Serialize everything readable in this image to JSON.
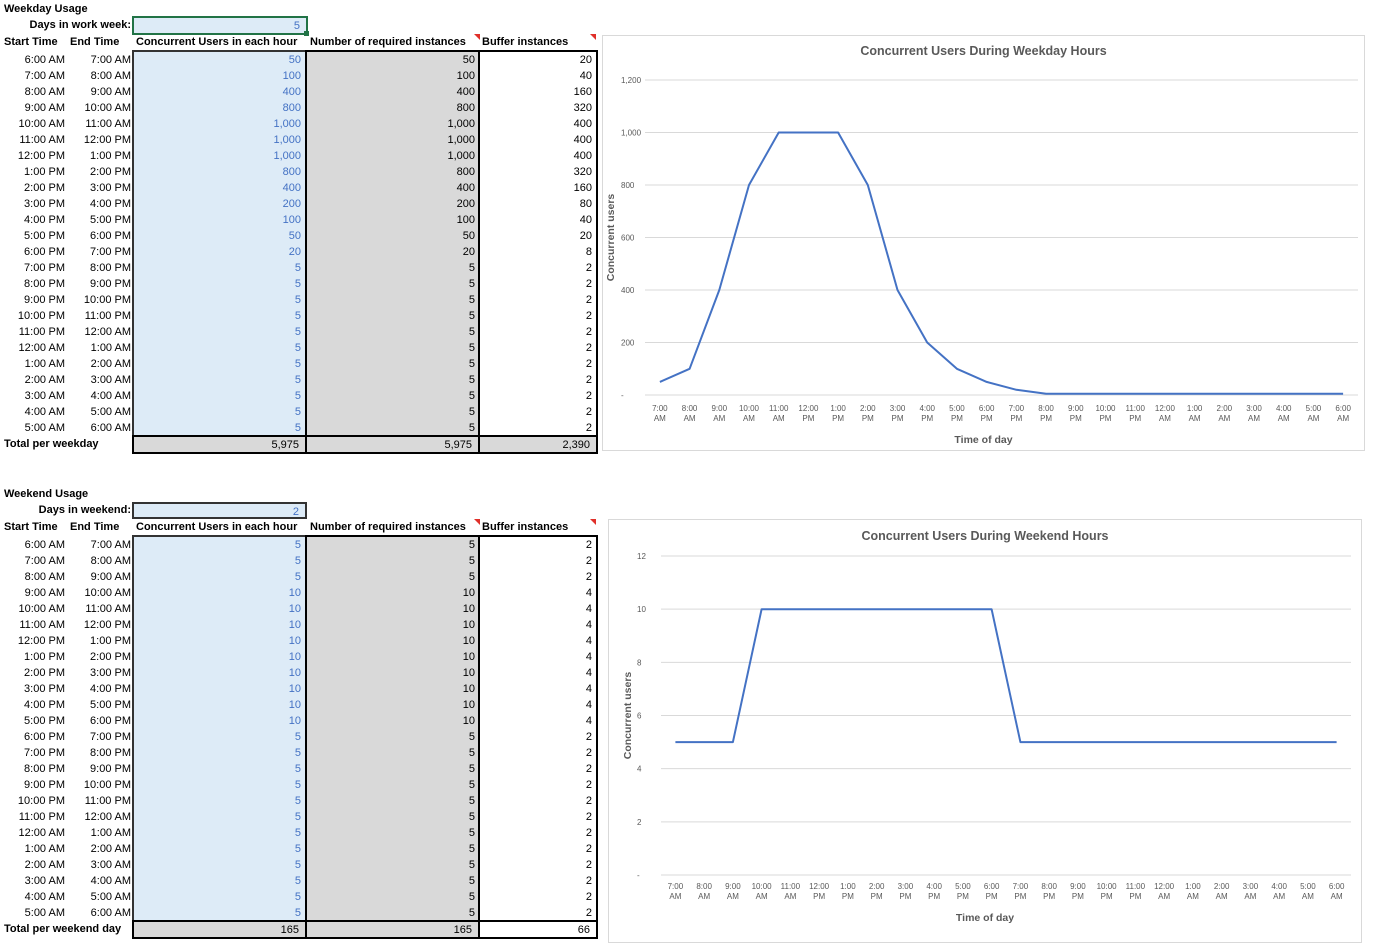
{
  "weekday": {
    "title": "Weekday Usage",
    "days_label": "Days in work week:",
    "days_value": "5",
    "headers": {
      "start": "Start Time",
      "end": "End Time",
      "users": "Concurrent Users in each hour",
      "required": "Number of required instances",
      "buffer": "Buffer instances"
    },
    "rows": [
      [
        "6:00 AM",
        "7:00 AM",
        "50",
        "50",
        "20"
      ],
      [
        "7:00 AM",
        "8:00 AM",
        "100",
        "100",
        "40"
      ],
      [
        "8:00 AM",
        "9:00 AM",
        "400",
        "400",
        "160"
      ],
      [
        "9:00 AM",
        "10:00 AM",
        "800",
        "800",
        "320"
      ],
      [
        "10:00 AM",
        "11:00 AM",
        "1,000",
        "1,000",
        "400"
      ],
      [
        "11:00 AM",
        "12:00 PM",
        "1,000",
        "1,000",
        "400"
      ],
      [
        "12:00 PM",
        "1:00 PM",
        "1,000",
        "1,000",
        "400"
      ],
      [
        "1:00 PM",
        "2:00 PM",
        "800",
        "800",
        "320"
      ],
      [
        "2:00 PM",
        "3:00 PM",
        "400",
        "400",
        "160"
      ],
      [
        "3:00 PM",
        "4:00 PM",
        "200",
        "200",
        "80"
      ],
      [
        "4:00 PM",
        "5:00 PM",
        "100",
        "100",
        "40"
      ],
      [
        "5:00 PM",
        "6:00 PM",
        "50",
        "50",
        "20"
      ],
      [
        "6:00 PM",
        "7:00 PM",
        "20",
        "20",
        "8"
      ],
      [
        "7:00 PM",
        "8:00 PM",
        "5",
        "5",
        "2"
      ],
      [
        "8:00 PM",
        "9:00 PM",
        "5",
        "5",
        "2"
      ],
      [
        "9:00 PM",
        "10:00 PM",
        "5",
        "5",
        "2"
      ],
      [
        "10:00 PM",
        "11:00 PM",
        "5",
        "5",
        "2"
      ],
      [
        "11:00 PM",
        "12:00 AM",
        "5",
        "5",
        "2"
      ],
      [
        "12:00 AM",
        "1:00 AM",
        "5",
        "5",
        "2"
      ],
      [
        "1:00 AM",
        "2:00 AM",
        "5",
        "5",
        "2"
      ],
      [
        "2:00 AM",
        "3:00 AM",
        "5",
        "5",
        "2"
      ],
      [
        "3:00 AM",
        "4:00 AM",
        "5",
        "5",
        "2"
      ],
      [
        "4:00 AM",
        "5:00 AM",
        "5",
        "5",
        "2"
      ],
      [
        "5:00 AM",
        "6:00 AM",
        "5",
        "5",
        "2"
      ]
    ],
    "total_label": "Total per weekday",
    "totals": [
      "5,975",
      "5,975",
      "2,390"
    ]
  },
  "weekend": {
    "title": "Weekend Usage",
    "days_label": "Days in weekend:",
    "days_value": "2",
    "headers": {
      "start": "Start Time",
      "end": "End Time",
      "users": "Concurrent Users in each hour",
      "required": "Number of required instances",
      "buffer": "Buffer instances"
    },
    "rows": [
      [
        "6:00 AM",
        "7:00 AM",
        "5",
        "5",
        "2"
      ],
      [
        "7:00 AM",
        "8:00 AM",
        "5",
        "5",
        "2"
      ],
      [
        "8:00 AM",
        "9:00 AM",
        "5",
        "5",
        "2"
      ],
      [
        "9:00 AM",
        "10:00 AM",
        "10",
        "10",
        "4"
      ],
      [
        "10:00 AM",
        "11:00 AM",
        "10",
        "10",
        "4"
      ],
      [
        "11:00 AM",
        "12:00 PM",
        "10",
        "10",
        "4"
      ],
      [
        "12:00 PM",
        "1:00 PM",
        "10",
        "10",
        "4"
      ],
      [
        "1:00 PM",
        "2:00 PM",
        "10",
        "10",
        "4"
      ],
      [
        "2:00 PM",
        "3:00 PM",
        "10",
        "10",
        "4"
      ],
      [
        "3:00 PM",
        "4:00 PM",
        "10",
        "10",
        "4"
      ],
      [
        "4:00 PM",
        "5:00 PM",
        "10",
        "10",
        "4"
      ],
      [
        "5:00 PM",
        "6:00 PM",
        "10",
        "10",
        "4"
      ],
      [
        "6:00 PM",
        "7:00 PM",
        "5",
        "5",
        "2"
      ],
      [
        "7:00 PM",
        "8:00 PM",
        "5",
        "5",
        "2"
      ],
      [
        "8:00 PM",
        "9:00 PM",
        "5",
        "5",
        "2"
      ],
      [
        "9:00 PM",
        "10:00 PM",
        "5",
        "5",
        "2"
      ],
      [
        "10:00 PM",
        "11:00 PM",
        "5",
        "5",
        "2"
      ],
      [
        "11:00 PM",
        "12:00 AM",
        "5",
        "5",
        "2"
      ],
      [
        "12:00 AM",
        "1:00 AM",
        "5",
        "5",
        "2"
      ],
      [
        "1:00 AM",
        "2:00 AM",
        "5",
        "5",
        "2"
      ],
      [
        "2:00 AM",
        "3:00 AM",
        "5",
        "5",
        "2"
      ],
      [
        "3:00 AM",
        "4:00 AM",
        "5",
        "5",
        "2"
      ],
      [
        "4:00 AM",
        "5:00 AM",
        "5",
        "5",
        "2"
      ],
      [
        "5:00 AM",
        "6:00 AM",
        "5",
        "5",
        "2"
      ]
    ],
    "total_label": "Total per weekend day",
    "totals": [
      "165",
      "165",
      "66"
    ]
  },
  "colors": {
    "line": "#4472c4",
    "input_fill": "#ddebf7",
    "calc_fill": "#d9d9d9",
    "note_marker": "#e0302a",
    "active_cell_border": "#217346"
  },
  "chart_data": [
    {
      "type": "line",
      "title": "Concurrent Users During Weekday Hours",
      "xlabel": "Time of day",
      "ylabel": "Concurrent users",
      "x": [
        [
          "7:00",
          "AM"
        ],
        [
          "8:00",
          "AM"
        ],
        [
          "9:00",
          "AM"
        ],
        [
          "10:00",
          "AM"
        ],
        [
          "11:00",
          "AM"
        ],
        [
          "12:00",
          "PM"
        ],
        [
          "1:00",
          "PM"
        ],
        [
          "2:00",
          "PM"
        ],
        [
          "3:00",
          "PM"
        ],
        [
          "4:00",
          "PM"
        ],
        [
          "5:00",
          "PM"
        ],
        [
          "6:00",
          "PM"
        ],
        [
          "7:00",
          "PM"
        ],
        [
          "8:00",
          "PM"
        ],
        [
          "9:00",
          "PM"
        ],
        [
          "10:00",
          "PM"
        ],
        [
          "11:00",
          "PM"
        ],
        [
          "12:00",
          "AM"
        ],
        [
          "1:00",
          "AM"
        ],
        [
          "2:00",
          "AM"
        ],
        [
          "3:00",
          "AM"
        ],
        [
          "4:00",
          "AM"
        ],
        [
          "5:00",
          "AM"
        ],
        [
          "6:00",
          "AM"
        ]
      ],
      "series": [
        {
          "values": [
            50,
            100,
            400,
            800,
            1000,
            1000,
            1000,
            800,
            400,
            200,
            100,
            50,
            20,
            5,
            5,
            5,
            5,
            5,
            5,
            5,
            5,
            5,
            5,
            5
          ]
        }
      ],
      "ylim": [
        0,
        1200
      ],
      "yticks": [
        "-",
        "200",
        "400",
        "600",
        "800",
        "1,000",
        "1,200"
      ],
      "grid": true
    },
    {
      "type": "line",
      "title": "Concurrent Users During Weekend Hours",
      "xlabel": "Time of day",
      "ylabel": "Concurrent users",
      "x": [
        [
          "7:00",
          "AM"
        ],
        [
          "8:00",
          "AM"
        ],
        [
          "9:00",
          "AM"
        ],
        [
          "10:00",
          "AM"
        ],
        [
          "11:00",
          "AM"
        ],
        [
          "12:00",
          "PM"
        ],
        [
          "1:00",
          "PM"
        ],
        [
          "2:00",
          "PM"
        ],
        [
          "3:00",
          "PM"
        ],
        [
          "4:00",
          "PM"
        ],
        [
          "5:00",
          "PM"
        ],
        [
          "6:00",
          "PM"
        ],
        [
          "7:00",
          "PM"
        ],
        [
          "8:00",
          "PM"
        ],
        [
          "9:00",
          "PM"
        ],
        [
          "10:00",
          "PM"
        ],
        [
          "11:00",
          "PM"
        ],
        [
          "12:00",
          "AM"
        ],
        [
          "1:00",
          "AM"
        ],
        [
          "2:00",
          "AM"
        ],
        [
          "3:00",
          "AM"
        ],
        [
          "4:00",
          "AM"
        ],
        [
          "5:00",
          "AM"
        ],
        [
          "6:00",
          "AM"
        ]
      ],
      "series": [
        {
          "values": [
            5,
            5,
            5,
            10,
            10,
            10,
            10,
            10,
            10,
            10,
            10,
            10,
            5,
            5,
            5,
            5,
            5,
            5,
            5,
            5,
            5,
            5,
            5,
            5
          ]
        }
      ],
      "ylim": [
        0,
        12
      ],
      "yticks": [
        "-",
        "2",
        "4",
        "6",
        "8",
        "10",
        "12"
      ],
      "grid": true
    }
  ]
}
